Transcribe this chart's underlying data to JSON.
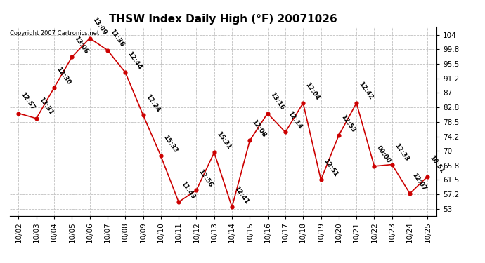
{
  "title": "THSW Index Daily High (°F) 20071026",
  "copyright": "Copyright 2007 Cartronics.net",
  "dates": [
    "10/02",
    "10/03",
    "10/04",
    "10/05",
    "10/06",
    "10/07",
    "10/08",
    "10/09",
    "10/10",
    "10/11",
    "10/12",
    "10/13",
    "10/14",
    "10/15",
    "10/16",
    "10/17",
    "10/18",
    "10/19",
    "10/20",
    "10/21",
    "10/22",
    "10/23",
    "10/24",
    "10/25"
  ],
  "values": [
    81.0,
    79.5,
    88.5,
    97.5,
    103.0,
    99.5,
    93.0,
    80.5,
    68.5,
    55.0,
    58.5,
    69.5,
    53.5,
    73.0,
    81.0,
    75.5,
    84.0,
    61.5,
    74.5,
    84.0,
    65.5,
    66.0,
    57.5,
    62.5
  ],
  "times": [
    "12:57",
    "13:31",
    "12:30",
    "13:06",
    "13:09",
    "11:36",
    "12:44",
    "12:24",
    "15:33",
    "11:43",
    "12:56",
    "15:31",
    "12:41",
    "12:08",
    "13:16",
    "12:14",
    "12:04",
    "12:51",
    "12:53",
    "12:42",
    "00:00",
    "12:33",
    "12:07",
    "10:51"
  ],
  "line_color": "#cc0000",
  "marker_color": "#cc0000",
  "bg_color": "#ffffff",
  "grid_color": "#c0c0c0",
  "yticks": [
    53.0,
    57.2,
    61.5,
    65.8,
    70.0,
    74.2,
    78.5,
    82.8,
    87.0,
    91.2,
    95.5,
    99.8,
    104.0
  ],
  "ylim": [
    51.0,
    106.5
  ],
  "title_fontsize": 11,
  "tick_fontsize": 7.5,
  "annotation_fontsize": 6.5,
  "annotation_color": "#000000",
  "annotation_rotation": -55,
  "copyright_fontsize": 6
}
